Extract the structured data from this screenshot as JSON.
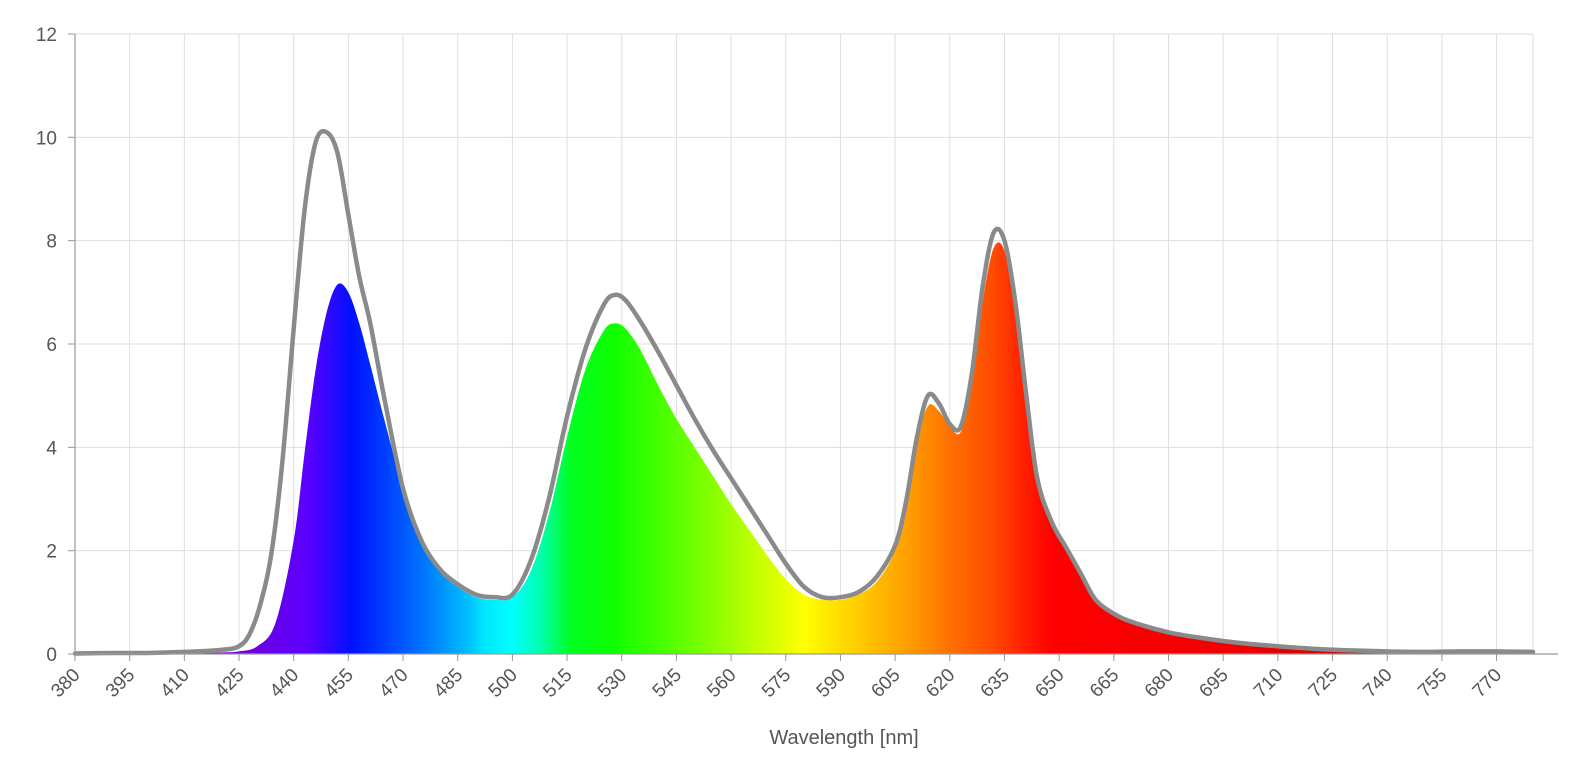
{
  "chart_data": {
    "type": "area",
    "title": "",
    "xlabel": "Wavelength [nm]",
    "ylabel": "",
    "xlim": [
      380,
      780
    ],
    "ylim": [
      0,
      12
    ],
    "grid": true,
    "y_ticks": [
      "0",
      "2",
      "4",
      "6",
      "8",
      "10",
      "12"
    ],
    "x_ticks": [
      "380",
      "395",
      "410",
      "425",
      "440",
      "455",
      "470",
      "485",
      "500",
      "515",
      "530",
      "545",
      "560",
      "575",
      "590",
      "605",
      "620",
      "635",
      "650",
      "665",
      "680",
      "695",
      "710",
      "725",
      "740",
      "755",
      "770"
    ],
    "colors": {
      "outline": "#8a8a8a",
      "grid": "#dedede",
      "axis": "#999999"
    },
    "series": [
      {
        "style": "spectral-fill",
        "x": [
          380,
          390,
          400,
          410,
          420,
          425,
          430,
          435,
          440,
          443,
          446,
          449,
          452,
          455,
          458,
          461,
          465,
          470,
          475,
          480,
          485,
          490,
          495,
          500,
          505,
          510,
          515,
          520,
          525,
          528,
          531,
          535,
          540,
          545,
          550,
          555,
          560,
          565,
          570,
          575,
          580,
          585,
          590,
          595,
          600,
          605,
          608,
          611,
          614,
          617,
          620,
          623,
          626,
          629,
          632,
          635,
          638,
          641,
          644,
          648,
          652,
          656,
          660,
          665,
          670,
          680,
          690,
          700,
          710,
          720,
          730,
          740,
          750,
          760,
          770,
          780
        ],
        "y": [
          0.01,
          0.01,
          0.01,
          0.02,
          0.03,
          0.05,
          0.15,
          0.6,
          2.2,
          3.9,
          5.5,
          6.6,
          7.15,
          7.0,
          6.4,
          5.6,
          4.5,
          3.2,
          2.2,
          1.6,
          1.3,
          1.1,
          1.05,
          1.1,
          1.6,
          2.7,
          4.2,
          5.5,
          6.25,
          6.4,
          6.3,
          5.9,
          5.2,
          4.55,
          4.0,
          3.45,
          2.9,
          2.4,
          1.9,
          1.45,
          1.15,
          1.05,
          1.05,
          1.15,
          1.4,
          2.0,
          2.9,
          4.1,
          4.8,
          4.7,
          4.4,
          4.3,
          5.2,
          6.8,
          7.85,
          7.8,
          6.6,
          4.8,
          3.3,
          2.5,
          2.0,
          1.5,
          1.0,
          0.75,
          0.6,
          0.4,
          0.28,
          0.2,
          0.14,
          0.1,
          0.07,
          0.05,
          0.04,
          0.05,
          0.05,
          0.04
        ]
      },
      {
        "style": "gray-outline",
        "x": [
          380,
          390,
          400,
          410,
          420,
          425,
          428,
          431,
          434,
          437,
          440,
          443,
          446,
          449,
          452,
          455,
          458,
          461,
          465,
          470,
          475,
          480,
          485,
          490,
          495,
          500,
          505,
          510,
          515,
          520,
          525,
          528,
          531,
          535,
          540,
          545,
          550,
          555,
          560,
          565,
          570,
          575,
          580,
          585,
          590,
          595,
          600,
          605,
          608,
          611,
          614,
          617,
          620,
          623,
          626,
          629,
          632,
          635,
          638,
          641,
          644,
          648,
          652,
          656,
          660,
          665,
          670,
          680,
          690,
          700,
          710,
          720,
          730,
          740,
          750,
          760,
          770,
          780
        ],
        "y": [
          0.01,
          0.02,
          0.02,
          0.04,
          0.08,
          0.15,
          0.4,
          1.0,
          2.0,
          3.8,
          6.3,
          8.6,
          9.9,
          10.1,
          9.7,
          8.5,
          7.3,
          6.4,
          4.9,
          3.2,
          2.2,
          1.65,
          1.35,
          1.15,
          1.1,
          1.15,
          1.8,
          3.0,
          4.6,
          5.9,
          6.75,
          6.95,
          6.85,
          6.45,
          5.85,
          5.2,
          4.55,
          3.95,
          3.4,
          2.85,
          2.3,
          1.75,
          1.3,
          1.1,
          1.1,
          1.2,
          1.5,
          2.1,
          2.95,
          4.2,
          5.0,
          4.85,
          4.45,
          4.4,
          5.4,
          7.1,
          8.15,
          8.0,
          6.8,
          5.0,
          3.4,
          2.55,
          2.05,
          1.55,
          1.05,
          0.78,
          0.62,
          0.42,
          0.3,
          0.21,
          0.15,
          0.1,
          0.07,
          0.05,
          0.04,
          0.05,
          0.05,
          0.04
        ]
      }
    ]
  }
}
